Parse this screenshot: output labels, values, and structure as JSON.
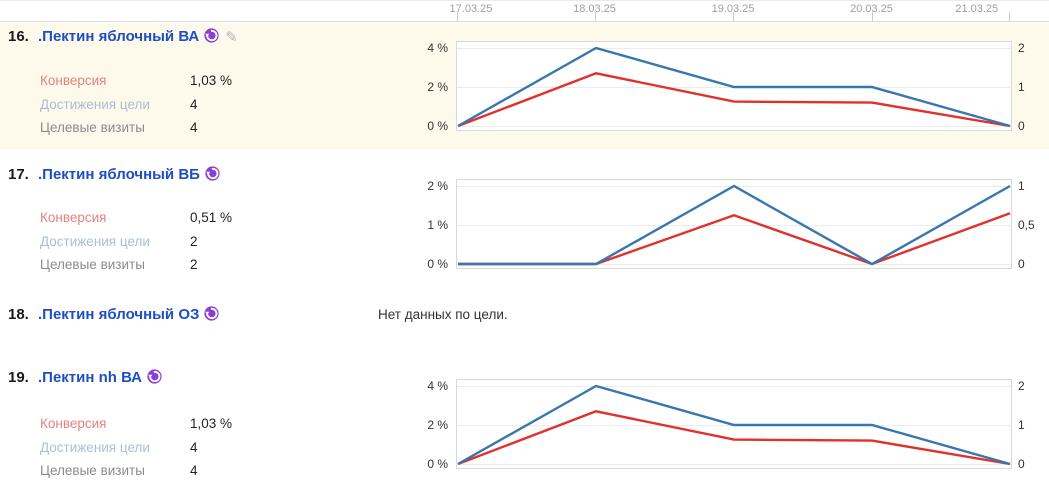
{
  "header": {
    "dates": [
      "17.03.25",
      "18.03.25",
      "19.03.25",
      "20.03.25",
      "21.03.25"
    ]
  },
  "icons": {
    "retargeting": "circular-arrow-badge",
    "edit": "✎"
  },
  "colors": {
    "link": "#1d4fc4",
    "number": "#1a1a1a",
    "purple": "#8b3fd6",
    "cream_row": "#fdfaeb",
    "blue_line": "#3876ad",
    "red_line": "#e0312e",
    "metric_red": "#e5827e",
    "metric_blue": "#a9c0d4",
    "metric_gray": "#8c8c8c",
    "value_text": "#222222",
    "date_text": "#9e9e9e",
    "axis_text": "#333333"
  },
  "rows": [
    {
      "num": "16.",
      "title": ".Пектин яблочный ВА",
      "highlighted": true,
      "editable": true,
      "chart_index": 0,
      "metrics": [
        {
          "label": "Конверсия",
          "value": "1,03 %",
          "color": "metric_red"
        },
        {
          "label": "Достижения цели",
          "value": "4",
          "color": "metric_blue"
        },
        {
          "label": "Целевые визиты",
          "value": "4",
          "color": "metric_gray"
        }
      ]
    },
    {
      "num": "17.",
      "title": ".Пектин яблочный ВБ",
      "highlighted": false,
      "editable": false,
      "chart_index": 1,
      "metrics": [
        {
          "label": "Конверсия",
          "value": "0,51 %",
          "color": "metric_red"
        },
        {
          "label": "Достижения цели",
          "value": "2",
          "color": "metric_blue"
        },
        {
          "label": "Целевые визиты",
          "value": "2",
          "color": "metric_gray"
        }
      ]
    },
    {
      "num": "18.",
      "title": ".Пектин яблочный ОЗ",
      "highlighted": false,
      "editable": false,
      "no_data": "Нет данных по цели."
    },
    {
      "num": "19.",
      "title": ".Пектин nh ВА",
      "highlighted": false,
      "editable": false,
      "chart_index": 2,
      "metrics": [
        {
          "label": "Конверсия",
          "value": "1,03 %",
          "color": "metric_red"
        },
        {
          "label": "Достижения цели",
          "value": "4",
          "color": "metric_blue"
        },
        {
          "label": "Целевые визиты",
          "value": "4",
          "color": "metric_gray"
        }
      ]
    }
  ],
  "chart_data": [
    {
      "type": "line",
      "x": [
        "17.03.25",
        "18.03.25",
        "19.03.25",
        "20.03.25",
        "21.03.25"
      ],
      "grid": true,
      "legend": "none",
      "left_axis": {
        "title": "Конверсия",
        "unit": "%",
        "ticks": [
          "4 %",
          "2 %",
          "0 %"
        ],
        "max": 4,
        "min": 0
      },
      "right_axis": {
        "title": "Достижения цели",
        "ticks": [
          "2",
          "1",
          "0"
        ],
        "max": 2,
        "min": 0
      },
      "series": [
        {
          "name": "Конверсия",
          "axis": "left",
          "color": "red_line",
          "values": [
            0,
            2.7,
            1.25,
            1.2,
            0
          ]
        },
        {
          "name": "Достижения цели",
          "axis": "right",
          "color": "blue_line",
          "values": [
            0,
            2,
            1,
            1,
            0
          ]
        }
      ]
    },
    {
      "type": "line",
      "x": [
        "17.03.25",
        "18.03.25",
        "19.03.25",
        "20.03.25",
        "21.03.25"
      ],
      "grid": true,
      "legend": "none",
      "left_axis": {
        "title": "Конверсия",
        "unit": "%",
        "ticks": [
          "2 %",
          "1 %",
          "0 %"
        ],
        "max": 2,
        "min": 0
      },
      "right_axis": {
        "title": "Достижения цели",
        "ticks": [
          "1",
          "0,5",
          "0"
        ],
        "max": 1,
        "min": 0
      },
      "series": [
        {
          "name": "Конверсия",
          "axis": "left",
          "color": "red_line",
          "values": [
            0,
            0,
            1.25,
            0,
            1.3
          ]
        },
        {
          "name": "Достижения цели",
          "axis": "right",
          "color": "blue_line",
          "values": [
            0,
            0,
            1,
            0,
            1
          ]
        }
      ]
    },
    {
      "type": "line",
      "x": [
        "17.03.25",
        "18.03.25",
        "19.03.25",
        "20.03.25",
        "21.03.25"
      ],
      "grid": true,
      "legend": "none",
      "left_axis": {
        "title": "Конверсия",
        "unit": "%",
        "ticks": [
          "4 %",
          "2 %",
          "0 %"
        ],
        "max": 4,
        "min": 0
      },
      "right_axis": {
        "title": "Достижения цели",
        "ticks": [
          "2",
          "1",
          "0"
        ],
        "max": 2,
        "min": 0
      },
      "series": [
        {
          "name": "Конверсия",
          "axis": "left",
          "color": "red_line",
          "values": [
            0,
            2.7,
            1.25,
            1.2,
            0
          ]
        },
        {
          "name": "Достижения цели",
          "axis": "right",
          "color": "blue_line",
          "values": [
            0,
            2,
            1,
            1,
            0
          ]
        }
      ]
    }
  ]
}
